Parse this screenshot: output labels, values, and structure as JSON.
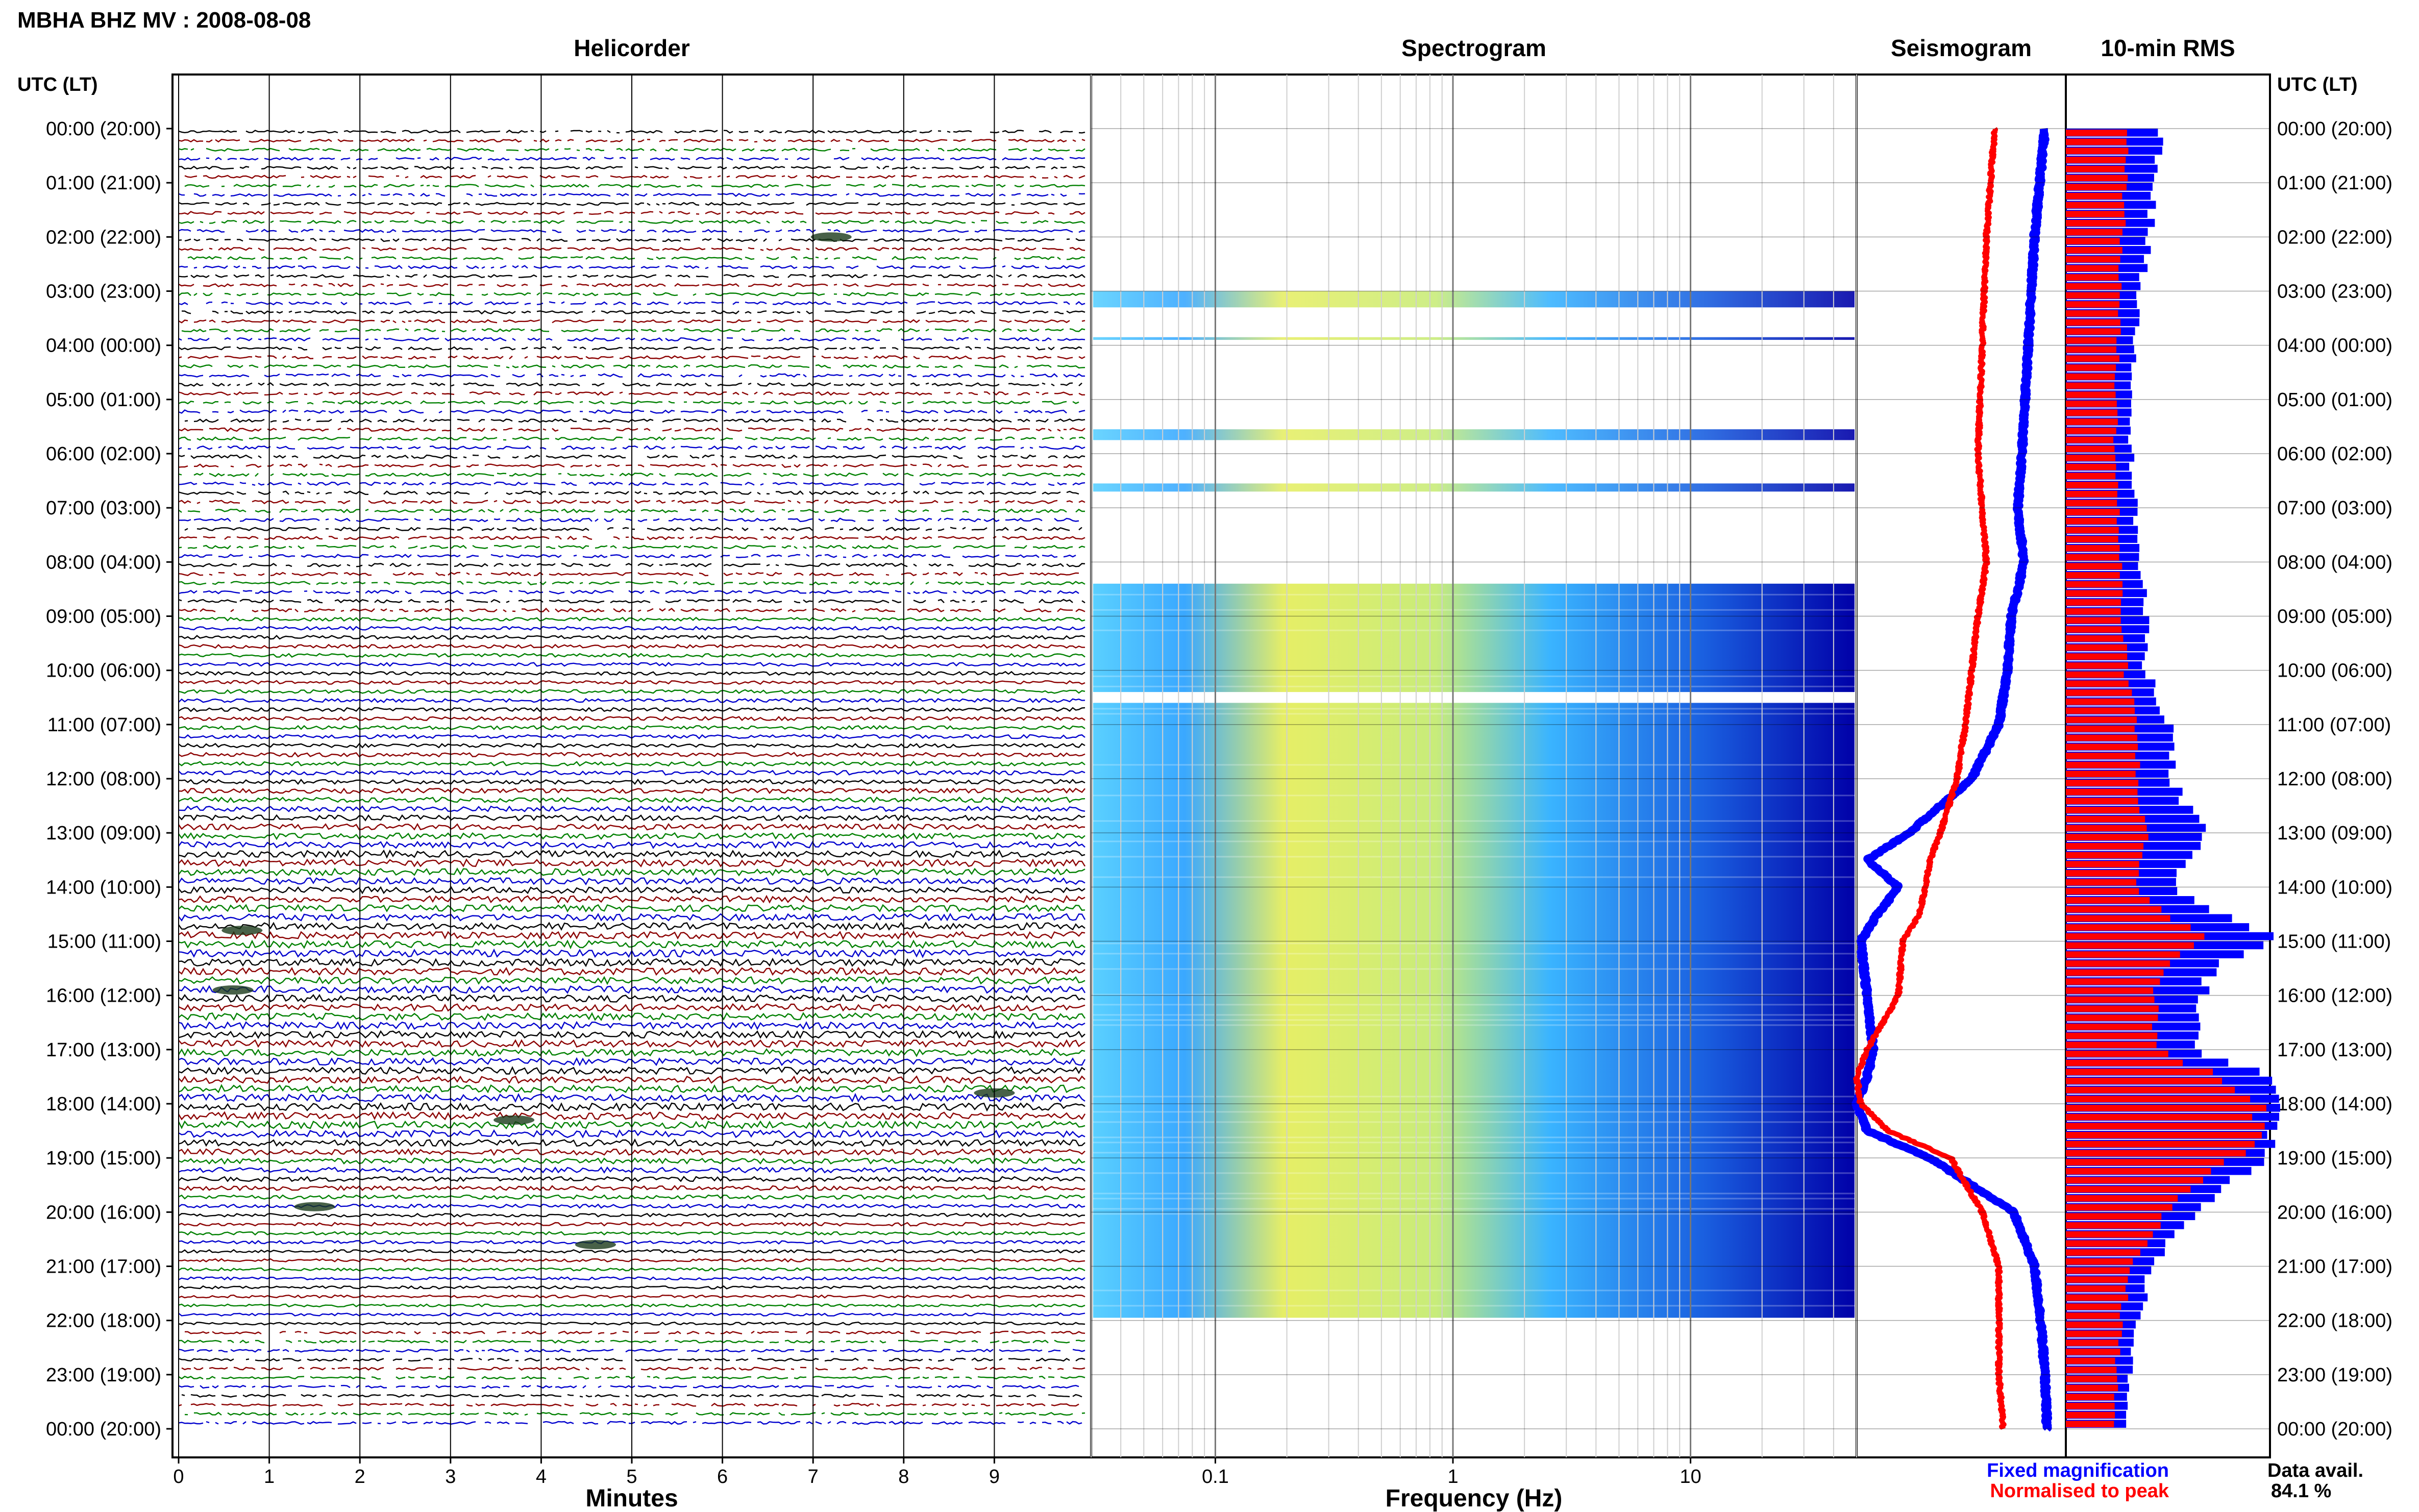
{
  "page": {
    "title": "MBHA BHZ MV : 2008-08-08"
  },
  "panels": {
    "helicorder": "Helicorder",
    "spectrogram": "Spectrogram",
    "seismogram": "Seismogram",
    "rms": "10-min RMS"
  },
  "time_axis": {
    "header_left": "UTC (LT)",
    "header_right": "UTC (LT)",
    "labels": [
      "00:00 (20:00)",
      "01:00 (21:00)",
      "02:00 (22:00)",
      "03:00 (23:00)",
      "04:00 (00:00)",
      "05:00 (01:00)",
      "06:00 (02:00)",
      "07:00 (03:00)",
      "08:00 (04:00)",
      "09:00 (05:00)",
      "10:00 (06:00)",
      "11:00 (07:00)",
      "12:00 (08:00)",
      "13:00 (09:00)",
      "14:00 (10:00)",
      "15:00 (11:00)",
      "16:00 (12:00)",
      "17:00 (13:00)",
      "18:00 (14:00)",
      "19:00 (15:00)",
      "20:00 (16:00)",
      "21:00 (17:00)",
      "22:00 (18:00)",
      "23:00 (19:00)",
      "00:00 (20:00)"
    ]
  },
  "legend": {
    "fixed": "Fixed magnification",
    "normalised": "Normalised to peak",
    "fixed_color": "#0000ff",
    "normalised_color": "#ff0000",
    "avail_label": "Data avail.",
    "avail_value": "84.1 %"
  },
  "colors": {
    "trace_cycle": [
      "#000000",
      "#8b0000",
      "#008000",
      "#0000cd"
    ],
    "rms_fixed": "#0000ff",
    "rms_norm": "#ff0000",
    "spec_low": "#0000a8",
    "spec_mid": "#2aa8ff",
    "spec_high": "#e8f060"
  },
  "chart_data": [
    {
      "type": "line",
      "name": "helicorder",
      "title": "Helicorder",
      "xlabel": "Minutes",
      "xlim": [
        0,
        10
      ],
      "xticks": [
        0,
        1,
        2,
        3,
        4,
        5,
        6,
        7,
        8,
        9
      ],
      "rows_per_hour": 6,
      "hours": 24,
      "data_span_hours": [
        0,
        24
      ]
    },
    {
      "type": "heatmap",
      "name": "spectrogram",
      "title": "Spectrogram",
      "xlabel": "Frequency (Hz)",
      "xscale": "log",
      "xlim": [
        0.03,
        50
      ],
      "xticks": [
        0.1,
        1,
        10
      ],
      "xtick_labels": [
        "0.1",
        "1",
        "10"
      ],
      "data_blocks_hours": [
        [
          3.0,
          3.3
        ],
        [
          3.85,
          3.9
        ],
        [
          5.55,
          5.75
        ],
        [
          6.55,
          6.7
        ],
        [
          8.4,
          10.4
        ],
        [
          10.6,
          21.95
        ]
      ]
    },
    {
      "type": "line",
      "name": "seismogram",
      "title": "Seismogram",
      "series": [
        {
          "name": "Fixed magnification",
          "hours": [
            0,
            2,
            4,
            6,
            7,
            8,
            9,
            10,
            11,
            12,
            13,
            13.5,
            14,
            14.5,
            15,
            16,
            17,
            17.5,
            18,
            18.5,
            19,
            20,
            21,
            22,
            23,
            24
          ],
          "amplitude": [
            0.9,
            0.85,
            0.82,
            0.79,
            0.77,
            0.8,
            0.74,
            0.72,
            0.68,
            0.55,
            0.25,
            0.05,
            0.2,
            0.1,
            0.02,
            0.05,
            0.08,
            0.05,
            0.0,
            0.05,
            0.35,
            0.75,
            0.85,
            0.88,
            0.9,
            0.91
          ]
        },
        {
          "name": "Normalised to peak",
          "hours": [
            0,
            2,
            4,
            6,
            7,
            8,
            9,
            10,
            11,
            12,
            13,
            13.5,
            14,
            14.5,
            15,
            16,
            17,
            17.5,
            18,
            18.5,
            19,
            20,
            21,
            22,
            23,
            24
          ],
          "amplitude": [
            0.66,
            0.62,
            0.6,
            0.58,
            0.6,
            0.62,
            0.58,
            0.55,
            0.52,
            0.48,
            0.4,
            0.35,
            0.33,
            0.3,
            0.22,
            0.2,
            0.05,
            0.0,
            0.02,
            0.15,
            0.45,
            0.6,
            0.68,
            0.68,
            0.68,
            0.7
          ]
        }
      ]
    },
    {
      "type": "bar",
      "name": "10-min RMS",
      "title": "10-min RMS",
      "orientation": "horizontal",
      "series": [
        {
          "name": "Fixed magnification",
          "hours": [
            0,
            1,
            2,
            3,
            4,
            5,
            6,
            7,
            8,
            9,
            10,
            11,
            12,
            13,
            14,
            14.5,
            15,
            15.5,
            16,
            17,
            17.5,
            18,
            18.5,
            19,
            20,
            21,
            22,
            23,
            24
          ],
          "values": [
            0.45,
            0.42,
            0.4,
            0.35,
            0.33,
            0.32,
            0.31,
            0.33,
            0.35,
            0.38,
            0.38,
            0.5,
            0.5,
            0.65,
            0.5,
            0.72,
            1.0,
            0.7,
            0.65,
            0.6,
            0.95,
            1.0,
            1.0,
            0.95,
            0.62,
            0.4,
            0.35,
            0.3,
            0.3
          ]
        },
        {
          "name": "Normalised to peak",
          "hours": [
            0,
            1,
            2,
            3,
            4,
            5,
            6,
            7,
            8,
            9,
            10,
            11,
            12,
            13,
            14,
            14.5,
            15,
            15.5,
            16,
            17,
            17.5,
            18,
            18.5,
            19,
            20,
            21,
            22,
            23,
            24
          ],
          "values": [
            0.32,
            0.3,
            0.28,
            0.27,
            0.26,
            0.25,
            0.25,
            0.26,
            0.27,
            0.28,
            0.3,
            0.35,
            0.36,
            0.4,
            0.35,
            0.5,
            0.7,
            0.48,
            0.45,
            0.45,
            0.75,
            1.0,
            0.95,
            0.85,
            0.5,
            0.32,
            0.28,
            0.25,
            0.25
          ]
        }
      ]
    }
  ]
}
